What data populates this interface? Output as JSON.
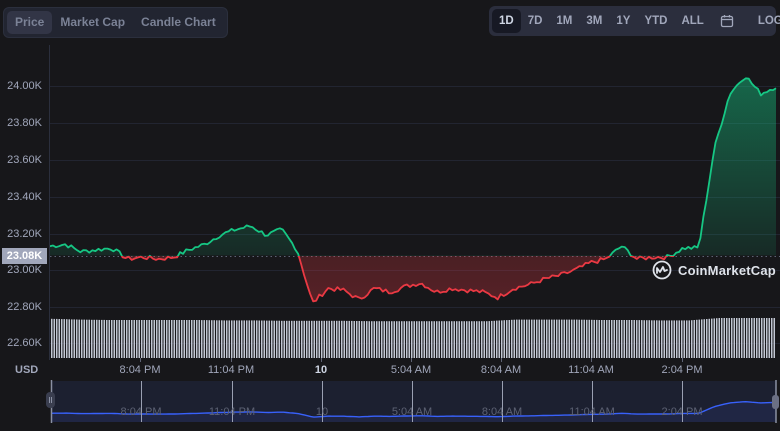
{
  "tabs_left": [
    {
      "label": "Price",
      "active": true
    },
    {
      "label": "Market Cap",
      "active": false
    },
    {
      "label": "Candle Chart",
      "active": false
    }
  ],
  "range_tabs": [
    {
      "label": "1D",
      "active": true
    },
    {
      "label": "7D",
      "active": false
    },
    {
      "label": "1M",
      "active": false
    },
    {
      "label": "3M",
      "active": false
    },
    {
      "label": "1Y",
      "active": false
    },
    {
      "label": "YTD",
      "active": false
    },
    {
      "label": "ALL",
      "active": false
    }
  ],
  "calendar_icon": "calendar-icon",
  "log_label": "LOG",
  "current_price_tag": "23.08K",
  "currency_label": "USD",
  "watermark": "CoinMarketCap",
  "colors": {
    "up": "#16c784",
    "down": "#ea3943",
    "navigator_line": "#3861fb",
    "background": "#17171a",
    "grid": "#222531"
  },
  "chart_data": {
    "type": "line",
    "title": "Price (1D)",
    "xlabel": "",
    "ylabel": "USD",
    "ylim": [
      22.5,
      24.15
    ],
    "y_unit": "K USD",
    "y_ticks": [
      "24.00K",
      "23.80K",
      "23.60K",
      "23.40K",
      "23.20K",
      "23.00K",
      "22.80K",
      "22.60K"
    ],
    "x_ticks": [
      "8:04 PM",
      "11:04 PM",
      "10",
      "5:04 AM",
      "8:04 AM",
      "11:04 AM",
      "2:04 PM"
    ],
    "baseline": 23.08,
    "baseline_label": "23.08K",
    "legend": [],
    "grid": true,
    "series": [
      {
        "name": "Price",
        "x": [
          "5:04 PM",
          "5:34 PM",
          "6:04 PM",
          "6:34 PM",
          "7:04 PM",
          "7:34 PM",
          "8:04 PM",
          "8:34 PM",
          "9:04 PM",
          "9:34 PM",
          "10:04 PM",
          "10:34 PM",
          "11:04 PM",
          "11:34 PM",
          "12:04 AM",
          "12:34 AM",
          "1:04 AM",
          "1:34 AM",
          "2:04 AM",
          "2:34 AM",
          "3:04 AM",
          "3:34 AM",
          "4:04 AM",
          "4:34 AM",
          "5:04 AM",
          "5:34 AM",
          "6:04 AM",
          "6:34 AM",
          "7:04 AM",
          "7:34 AM",
          "8:04 AM",
          "8:34 AM",
          "9:04 AM",
          "9:34 AM",
          "10:04 AM",
          "10:34 AM",
          "11:04 AM",
          "11:34 AM",
          "12:04 PM",
          "12:34 PM",
          "1:04 PM",
          "1:34 PM",
          "2:04 PM",
          "2:34 PM",
          "3:04 PM",
          "3:34 PM",
          "4:04 PM",
          "4:34 PM"
        ],
        "values": [
          23.13,
          23.14,
          23.1,
          23.11,
          23.12,
          23.06,
          23.07,
          23.06,
          23.07,
          23.11,
          23.14,
          23.19,
          23.22,
          23.24,
          23.19,
          23.22,
          23.11,
          22.82,
          22.9,
          22.89,
          22.84,
          22.9,
          22.88,
          22.91,
          22.93,
          22.88,
          22.9,
          22.89,
          22.88,
          22.85,
          22.9,
          22.92,
          22.95,
          22.97,
          23.0,
          23.04,
          23.06,
          23.13,
          23.06,
          23.07,
          23.07,
          23.12,
          23.12,
          23.66,
          23.96,
          24.06,
          23.96,
          24.0
        ]
      }
    ],
    "volume": {
      "type": "bar",
      "description": "relative volume bars below price line",
      "relative_levels": [
        0.98,
        0.96,
        0.95,
        0.95,
        0.95,
        0.95,
        0.94,
        0.94,
        0.93,
        0.93,
        0.93,
        0.92,
        0.92,
        0.92,
        0.92,
        0.92,
        0.96,
        0.96,
        0.96,
        0.95,
        0.95,
        0.94,
        0.94,
        1.0,
        1.0,
        1.0
      ]
    },
    "navigator": {
      "type": "area",
      "x_ticks": [
        "8:04 PM",
        "11:04 PM",
        "10",
        "5:04 AM",
        "8:04 AM",
        "11:04 AM",
        "2:04 PM"
      ]
    }
  }
}
